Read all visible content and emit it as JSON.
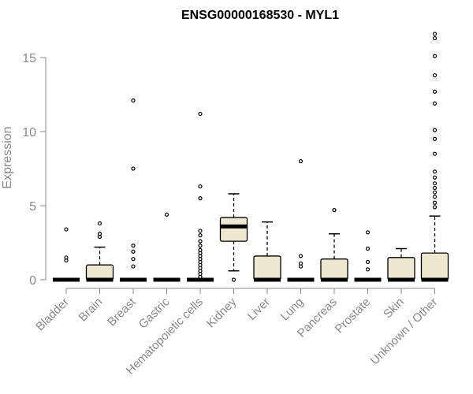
{
  "chart_data": {
    "type": "boxplot",
    "title": "ENSG00000168530 - MYL1",
    "xlabel": "",
    "ylabel": "Expression",
    "ylim": [
      0,
      16.7
    ],
    "y_ticks": [
      0,
      5,
      10,
      15
    ],
    "grid": false,
    "legend": "none",
    "box_fill": "#efe8d1",
    "categories": [
      "Bladder",
      "Brain",
      "Breast",
      "Gastric",
      "Hematopoietic cells",
      "Kidney",
      "Liver",
      "Lung",
      "Pancreas",
      "Prostate",
      "Skin",
      "Unknown / Other"
    ],
    "boxes": [
      {
        "category": "Bladder",
        "q1": 0,
        "median": 0,
        "q3": 0,
        "whisker_low": 0,
        "whisker_high": 0,
        "outliers": [
          1.3,
          1.5,
          3.4
        ]
      },
      {
        "category": "Brain",
        "q1": 0,
        "median": 0,
        "q3": 1.0,
        "whisker_low": 0,
        "whisker_high": 2.2,
        "outliers": [
          2.9,
          3.1,
          3.8
        ]
      },
      {
        "category": "Breast",
        "q1": 0,
        "median": 0,
        "q3": 0,
        "whisker_low": 0,
        "whisker_high": 0,
        "outliers": [
          0.9,
          1.4,
          1.9,
          2.3,
          7.5,
          12.1
        ]
      },
      {
        "category": "Gastric",
        "q1": 0,
        "median": 0,
        "q3": 0,
        "whisker_low": 0,
        "whisker_high": 0,
        "outliers": [
          4.4
        ]
      },
      {
        "category": "Hematopoietic cells",
        "q1": 0,
        "median": 0,
        "q3": 0,
        "whisker_low": 0,
        "whisker_high": 0,
        "outliers": [
          0.2,
          0.4,
          0.6,
          0.8,
          1.0,
          1.2,
          1.4,
          1.6,
          1.8,
          2.0,
          2.3,
          2.6,
          3.0,
          3.3,
          5.5,
          6.3,
          11.2
        ]
      },
      {
        "category": "Kidney",
        "q1": 2.6,
        "median": 3.6,
        "q3": 4.2,
        "whisker_low": 0.6,
        "whisker_high": 5.8,
        "outliers": [
          0
        ]
      },
      {
        "category": "Liver",
        "q1": 0,
        "median": 0,
        "q3": 1.6,
        "whisker_low": 0,
        "whisker_high": 3.9,
        "outliers": []
      },
      {
        "category": "Lung",
        "q1": 0,
        "median": 0,
        "q3": 0,
        "whisker_low": 0,
        "whisker_high": 0,
        "outliers": [
          0.9,
          1.1,
          1.6,
          8.0
        ]
      },
      {
        "category": "Pancreas",
        "q1": 0,
        "median": 0,
        "q3": 1.4,
        "whisker_low": 0,
        "whisker_high": 3.1,
        "outliers": [
          4.7
        ]
      },
      {
        "category": "Prostate",
        "q1": 0,
        "median": 0,
        "q3": 0,
        "whisker_low": 0,
        "whisker_high": 0,
        "outliers": [
          0.7,
          1.2,
          2.1,
          3.2
        ]
      },
      {
        "category": "Skin",
        "q1": 0,
        "median": 0,
        "q3": 1.5,
        "whisker_low": 0,
        "whisker_high": 2.1,
        "outliers": []
      },
      {
        "category": "Unknown / Other",
        "q1": 0,
        "median": 0,
        "q3": 1.8,
        "whisker_low": 0,
        "whisker_high": 4.3,
        "outliers": [
          4.9,
          5.2,
          5.6,
          5.9,
          6.2,
          6.5,
          6.9,
          7.3,
          8.5,
          9.5,
          10.1,
          11.9,
          12.7,
          13.8,
          15.1,
          16.3,
          16.6
        ]
      }
    ]
  }
}
